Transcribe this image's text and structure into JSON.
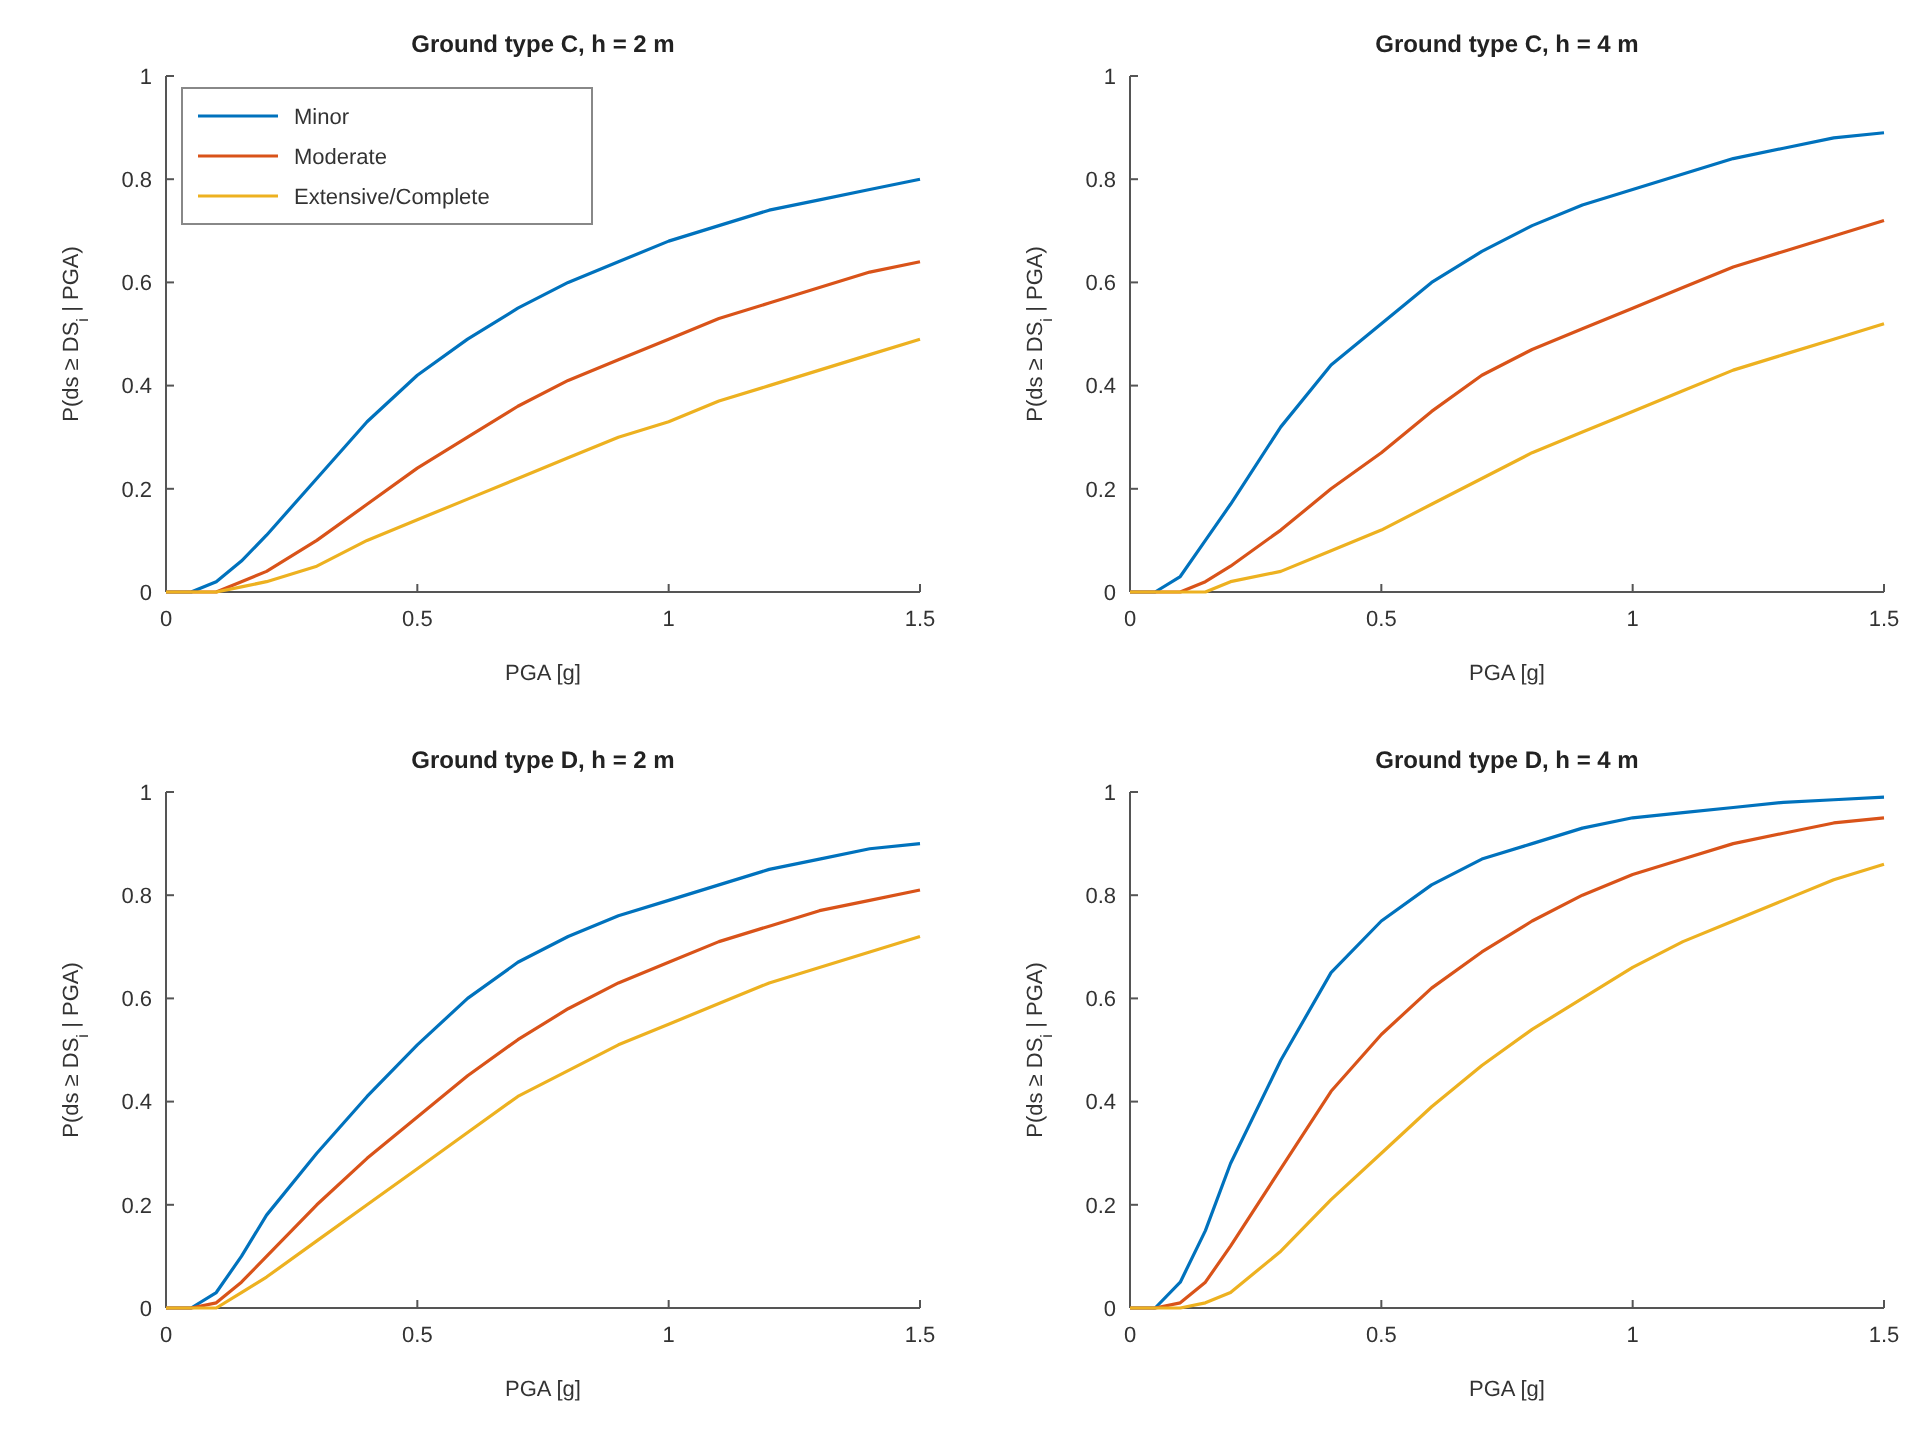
{
  "chart_data": [
    {
      "type": "line",
      "title": "Ground type C, h = 2 m",
      "xlabel": "PGA [g]",
      "ylabel": "P(ds ≥ DS$_{i}$ | PGA)",
      "xlim": [
        0,
        1.5
      ],
      "xticks": [
        0,
        0.5,
        1,
        1.5
      ],
      "ylim": [
        0,
        1
      ],
      "yticks": [
        0,
        0.2,
        0.4,
        0.6,
        0.8,
        1
      ],
      "grid": false,
      "legend": "top left",
      "x": [
        0,
        0.05,
        0.1,
        0.15,
        0.2,
        0.3,
        0.4,
        0.5,
        0.6,
        0.7,
        0.8,
        0.9,
        1.0,
        1.1,
        1.2,
        1.3,
        1.4,
        1.5
      ],
      "series": [
        {
          "name": "Minor",
          "color": "#0072bd",
          "values": [
            0,
            0,
            0.02,
            0.06,
            0.11,
            0.22,
            0.33,
            0.42,
            0.49,
            0.55,
            0.6,
            0.64,
            0.68,
            0.71,
            0.74,
            0.76,
            0.78,
            0.8
          ]
        },
        {
          "name": "Moderate",
          "color": "#d95319",
          "values": [
            0,
            0,
            0,
            0.02,
            0.04,
            0.1,
            0.17,
            0.24,
            0.3,
            0.36,
            0.41,
            0.45,
            0.49,
            0.53,
            0.56,
            0.59,
            0.62,
            0.64
          ]
        },
        {
          "name": "Extensive/Complete",
          "color": "#edb120",
          "values": [
            0,
            0,
            0,
            0.01,
            0.02,
            0.05,
            0.1,
            0.14,
            0.18,
            0.22,
            0.26,
            0.3,
            0.33,
            0.37,
            0.4,
            0.43,
            0.46,
            0.49
          ]
        }
      ]
    },
    {
      "type": "line",
      "title": "Ground type C, h = 4 m",
      "xlabel": "PGA [g]",
      "ylabel": "P(ds ≥ DS$_{i}$ | PGA)",
      "xlim": [
        0,
        1.5
      ],
      "xticks": [
        0,
        0.5,
        1,
        1.5
      ],
      "ylim": [
        0,
        1
      ],
      "yticks": [
        0,
        0.2,
        0.4,
        0.6,
        0.8,
        1
      ],
      "grid": false,
      "x": [
        0,
        0.05,
        0.1,
        0.15,
        0.2,
        0.3,
        0.4,
        0.5,
        0.6,
        0.7,
        0.8,
        0.9,
        1.0,
        1.1,
        1.2,
        1.3,
        1.4,
        1.5
      ],
      "series": [
        {
          "color": "#0072bd",
          "values": [
            0,
            0,
            0.03,
            0.1,
            0.17,
            0.32,
            0.44,
            0.52,
            0.6,
            0.66,
            0.71,
            0.75,
            0.78,
            0.81,
            0.84,
            0.86,
            0.88,
            0.89
          ]
        },
        {
          "color": "#d95319",
          "values": [
            0,
            0,
            0,
            0.02,
            0.05,
            0.12,
            0.2,
            0.27,
            0.35,
            0.42,
            0.47,
            0.51,
            0.55,
            0.59,
            0.63,
            0.66,
            0.69,
            0.72
          ]
        },
        {
          "color": "#edb120",
          "values": [
            0,
            0,
            0,
            0,
            0.02,
            0.04,
            0.08,
            0.12,
            0.17,
            0.22,
            0.27,
            0.31,
            0.35,
            0.39,
            0.43,
            0.46,
            0.49,
            0.52
          ]
        }
      ]
    },
    {
      "type": "line",
      "title": "Ground type D, h = 2 m",
      "xlabel": "PGA [g]",
      "ylabel": "P(ds ≥ DS$_{i}$ | PGA)",
      "xlim": [
        0,
        1.5
      ],
      "xticks": [
        0,
        0.5,
        1,
        1.5
      ],
      "ylim": [
        0,
        1
      ],
      "yticks": [
        0,
        0.2,
        0.4,
        0.6,
        0.8,
        1
      ],
      "grid": false,
      "x": [
        0,
        0.05,
        0.1,
        0.15,
        0.2,
        0.3,
        0.4,
        0.5,
        0.6,
        0.7,
        0.8,
        0.9,
        1.0,
        1.1,
        1.2,
        1.3,
        1.4,
        1.5
      ],
      "series": [
        {
          "color": "#0072bd",
          "values": [
            0,
            0,
            0.03,
            0.1,
            0.18,
            0.3,
            0.41,
            0.51,
            0.6,
            0.67,
            0.72,
            0.76,
            0.79,
            0.82,
            0.85,
            0.87,
            0.89,
            0.9
          ]
        },
        {
          "color": "#d95319",
          "values": [
            0,
            0,
            0.01,
            0.05,
            0.1,
            0.2,
            0.29,
            0.37,
            0.45,
            0.52,
            0.58,
            0.63,
            0.67,
            0.71,
            0.74,
            0.77,
            0.79,
            0.81
          ]
        },
        {
          "color": "#edb120",
          "values": [
            0,
            0,
            0,
            0.03,
            0.06,
            0.13,
            0.2,
            0.27,
            0.34,
            0.41,
            0.46,
            0.51,
            0.55,
            0.59,
            0.63,
            0.66,
            0.69,
            0.72
          ]
        }
      ]
    },
    {
      "type": "line",
      "title": "Ground type D, h = 4 m",
      "xlabel": "PGA [g]",
      "ylabel": "P(ds ≥ DS$_{i}$ | PGA)",
      "xlim": [
        0,
        1.5
      ],
      "xticks": [
        0,
        0.5,
        1,
        1.5
      ],
      "ylim": [
        0,
        1
      ],
      "yticks": [
        0,
        0.2,
        0.4,
        0.6,
        0.8,
        1
      ],
      "grid": false,
      "x": [
        0,
        0.05,
        0.1,
        0.15,
        0.2,
        0.3,
        0.4,
        0.5,
        0.6,
        0.7,
        0.8,
        0.9,
        1.0,
        1.1,
        1.2,
        1.3,
        1.4,
        1.5
      ],
      "series": [
        {
          "color": "#0072bd",
          "values": [
            0,
            0,
            0.05,
            0.15,
            0.28,
            0.48,
            0.65,
            0.75,
            0.82,
            0.87,
            0.9,
            0.93,
            0.95,
            0.96,
            0.97,
            0.98,
            0.985,
            0.99
          ]
        },
        {
          "color": "#d95319",
          "values": [
            0,
            0,
            0.01,
            0.05,
            0.12,
            0.27,
            0.42,
            0.53,
            0.62,
            0.69,
            0.75,
            0.8,
            0.84,
            0.87,
            0.9,
            0.92,
            0.94,
            0.95
          ]
        },
        {
          "color": "#edb120",
          "values": [
            0,
            0,
            0,
            0.01,
            0.03,
            0.11,
            0.21,
            0.3,
            0.39,
            0.47,
            0.54,
            0.6,
            0.66,
            0.71,
            0.75,
            0.79,
            0.83,
            0.86
          ]
        }
      ]
    }
  ]
}
